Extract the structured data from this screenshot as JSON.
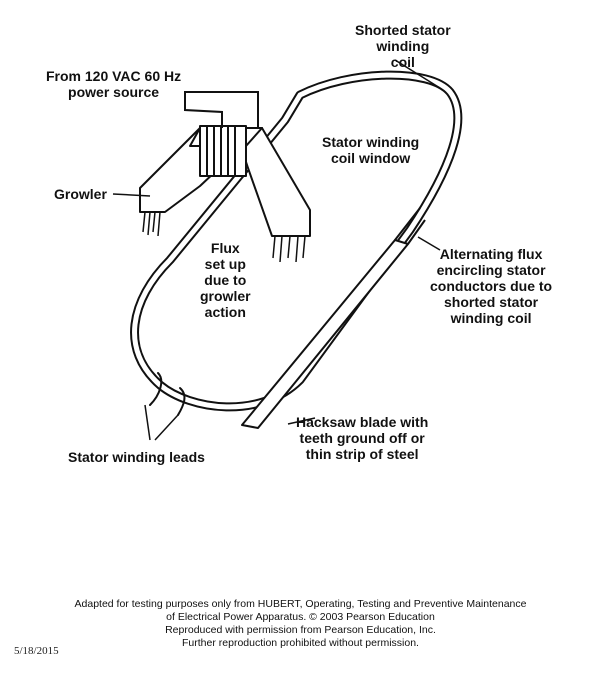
{
  "labels": {
    "shorted_coil": [
      "Shorted stator",
      "winding",
      "coil"
    ],
    "power_source": [
      "From 120 VAC 60 Hz",
      "power source"
    ],
    "coil_window": [
      "Stator winding",
      "coil window"
    ],
    "growler": "Growler",
    "flux": [
      "Flux",
      "set up",
      "due to",
      "growler",
      "action"
    ],
    "alternating_flux": [
      "Alternating flux",
      "encircling stator",
      "conductors due to",
      "shorted stator",
      "winding coil"
    ],
    "hacksaw": [
      "Hacksaw blade with",
      "teeth ground off or",
      "thin strip of steel"
    ],
    "leads": "Stator winding leads"
  },
  "credit": [
    "Adapted for testing purposes only from HUBERT, Operating, Testing and Preventive Maintenance",
    "of Electrical Power Apparatus. © 2003 Pearson Education",
    "Reproduced with permission from Pearson Education, Inc.",
    "Further reproduction prohibited without permission."
  ],
  "date": "5/18/2015"
}
